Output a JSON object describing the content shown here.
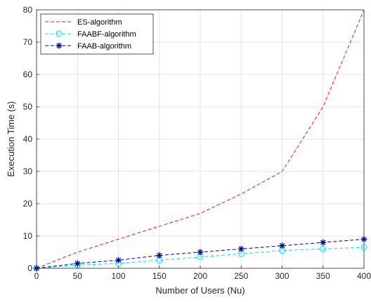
{
  "chart_data": {
    "type": "line",
    "xlabel": "Number of Users (Nu)",
    "ylabel": "Execution Time (s)",
    "xlim": [
      0,
      400
    ],
    "ylim": [
      0,
      80
    ],
    "xticks": [
      0,
      50,
      100,
      150,
      200,
      250,
      300,
      350,
      400
    ],
    "yticks": [
      0,
      10,
      20,
      30,
      40,
      50,
      60,
      70,
      80
    ],
    "xtick_labels": [
      "0",
      "50",
      "100",
      "150",
      "200",
      "250",
      "300",
      "350",
      "400"
    ],
    "ytick_labels": [
      "0",
      "10",
      "20",
      "30",
      "40",
      "50",
      "60",
      "70",
      "80"
    ],
    "grid": true,
    "legend_position": "top-left",
    "x": [
      0,
      50,
      100,
      150,
      200,
      250,
      300,
      350,
      400
    ],
    "series": [
      {
        "name": "ES-algorithm",
        "values": [
          0,
          5,
          9,
          13,
          17,
          23,
          30,
          50,
          80
        ],
        "color": "#e41a1c",
        "marker": "none",
        "line": "dashed"
      },
      {
        "name": "FAABF-algorithm",
        "values": [
          0,
          1,
          1.5,
          2.5,
          3.5,
          4.5,
          5.5,
          6,
          6.5
        ],
        "color": "#00e5e5",
        "marker": "circle",
        "line": "dashed"
      },
      {
        "name": "FAAB-algorithm",
        "values": [
          0,
          1.5,
          2.5,
          4,
          5,
          6,
          7,
          8,
          9
        ],
        "color": "#00008b",
        "marker": "asterisk",
        "line": "dashed"
      }
    ]
  }
}
